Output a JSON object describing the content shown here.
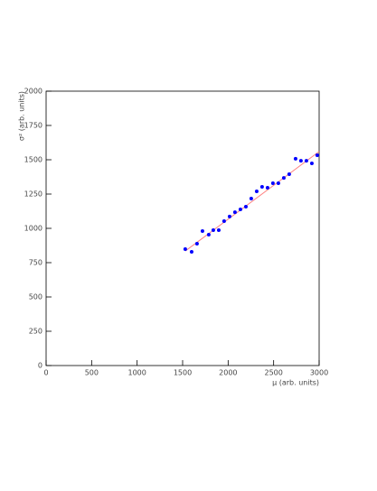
{
  "chart_data": {
    "type": "scatter",
    "x_label": "μ (arb. units)",
    "y_label": "σ² (arb. units)",
    "series": [
      {
        "color": "#0000ff",
        "x": [
          1529,
          1599,
          1658,
          1718,
          1787,
          1837,
          1897,
          1956,
          2016,
          2075,
          2135,
          2195,
          2254,
          2314,
          2373,
          2433,
          2492,
          2552,
          2612,
          2671,
          2741,
          2800,
          2860,
          2920,
          2979
        ],
        "values": [
          849,
          829,
          888,
          980,
          954,
          987,
          987,
          1053,
          1086,
          1118,
          1138,
          1158,
          1217,
          1270,
          1303,
          1296,
          1329,
          1329,
          1368,
          1395,
          1507,
          1493,
          1493,
          1474,
          1533
        ]
      }
    ],
    "fit_line": {
      "color": "#ff8080",
      "x": [
        1530,
        3000
      ],
      "values": [
        835,
        1560
      ]
    },
    "xlim": [
      0,
      3000
    ],
    "xticks": [
      0,
      500,
      1000,
      1500,
      2000,
      2500,
      3000
    ],
    "ylim": [
      0,
      2000
    ],
    "yticks": [
      0,
      250,
      500,
      750,
      1000,
      1250,
      1500,
      1750,
      2000
    ]
  }
}
